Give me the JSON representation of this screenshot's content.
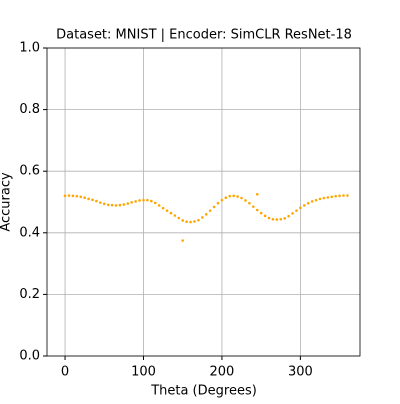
{
  "chart_data": {
    "type": "scatter",
    "title": "Dataset: MNIST | Encoder: SimCLR ResNet-18",
    "xlabel": "Theta (Degrees)",
    "ylabel": "Accuracy",
    "color": "#ffa500",
    "grid": true,
    "xlim": [
      -23,
      376
    ],
    "xticks": [
      0,
      100,
      200,
      300
    ],
    "ylim": [
      0,
      1
    ],
    "yticks": [
      {
        "value": 0,
        "label": "0.0"
      },
      {
        "value": 0.2,
        "label": "0.2"
      },
      {
        "value": 0.4,
        "label": "0.4"
      },
      {
        "value": 0.6,
        "label": "0.6"
      },
      {
        "value": 0.8,
        "label": "0.8"
      },
      {
        "value": 1,
        "label": "1.0"
      }
    ],
    "x": [
      0,
      5,
      10,
      15,
      20,
      25,
      30,
      35,
      40,
      45,
      50,
      55,
      60,
      65,
      70,
      75,
      80,
      85,
      90,
      95,
      100,
      105,
      110,
      115,
      120,
      125,
      130,
      135,
      140,
      145,
      150,
      155,
      160,
      165,
      170,
      175,
      180,
      185,
      190,
      195,
      200,
      205,
      210,
      215,
      220,
      225,
      230,
      235,
      240,
      245,
      250,
      255,
      260,
      265,
      270,
      275,
      280,
      285,
      290,
      295,
      300,
      305,
      310,
      315,
      320,
      325,
      330,
      335,
      340,
      345,
      350,
      355,
      360,
      150,
      245
    ],
    "values": [
      0.52,
      0.521,
      0.52,
      0.519,
      0.517,
      0.514,
      0.51,
      0.507,
      0.503,
      0.498,
      0.494,
      0.491,
      0.49,
      0.489,
      0.49,
      0.492,
      0.495,
      0.499,
      0.502,
      0.505,
      0.506,
      0.506,
      0.503,
      0.497,
      0.489,
      0.48,
      0.472,
      0.464,
      0.456,
      0.448,
      0.44,
      0.436,
      0.435,
      0.437,
      0.441,
      0.45,
      0.46,
      0.472,
      0.484,
      0.496,
      0.506,
      0.514,
      0.519,
      0.52,
      0.518,
      0.513,
      0.505,
      0.496,
      0.485,
      0.474,
      0.464,
      0.455,
      0.448,
      0.444,
      0.443,
      0.444,
      0.447,
      0.454,
      0.463,
      0.472,
      0.481,
      0.489,
      0.496,
      0.502,
      0.506,
      0.51,
      0.513,
      0.515,
      0.517,
      0.519,
      0.52,
      0.521,
      0.521,
      0.375,
      0.525
    ]
  }
}
